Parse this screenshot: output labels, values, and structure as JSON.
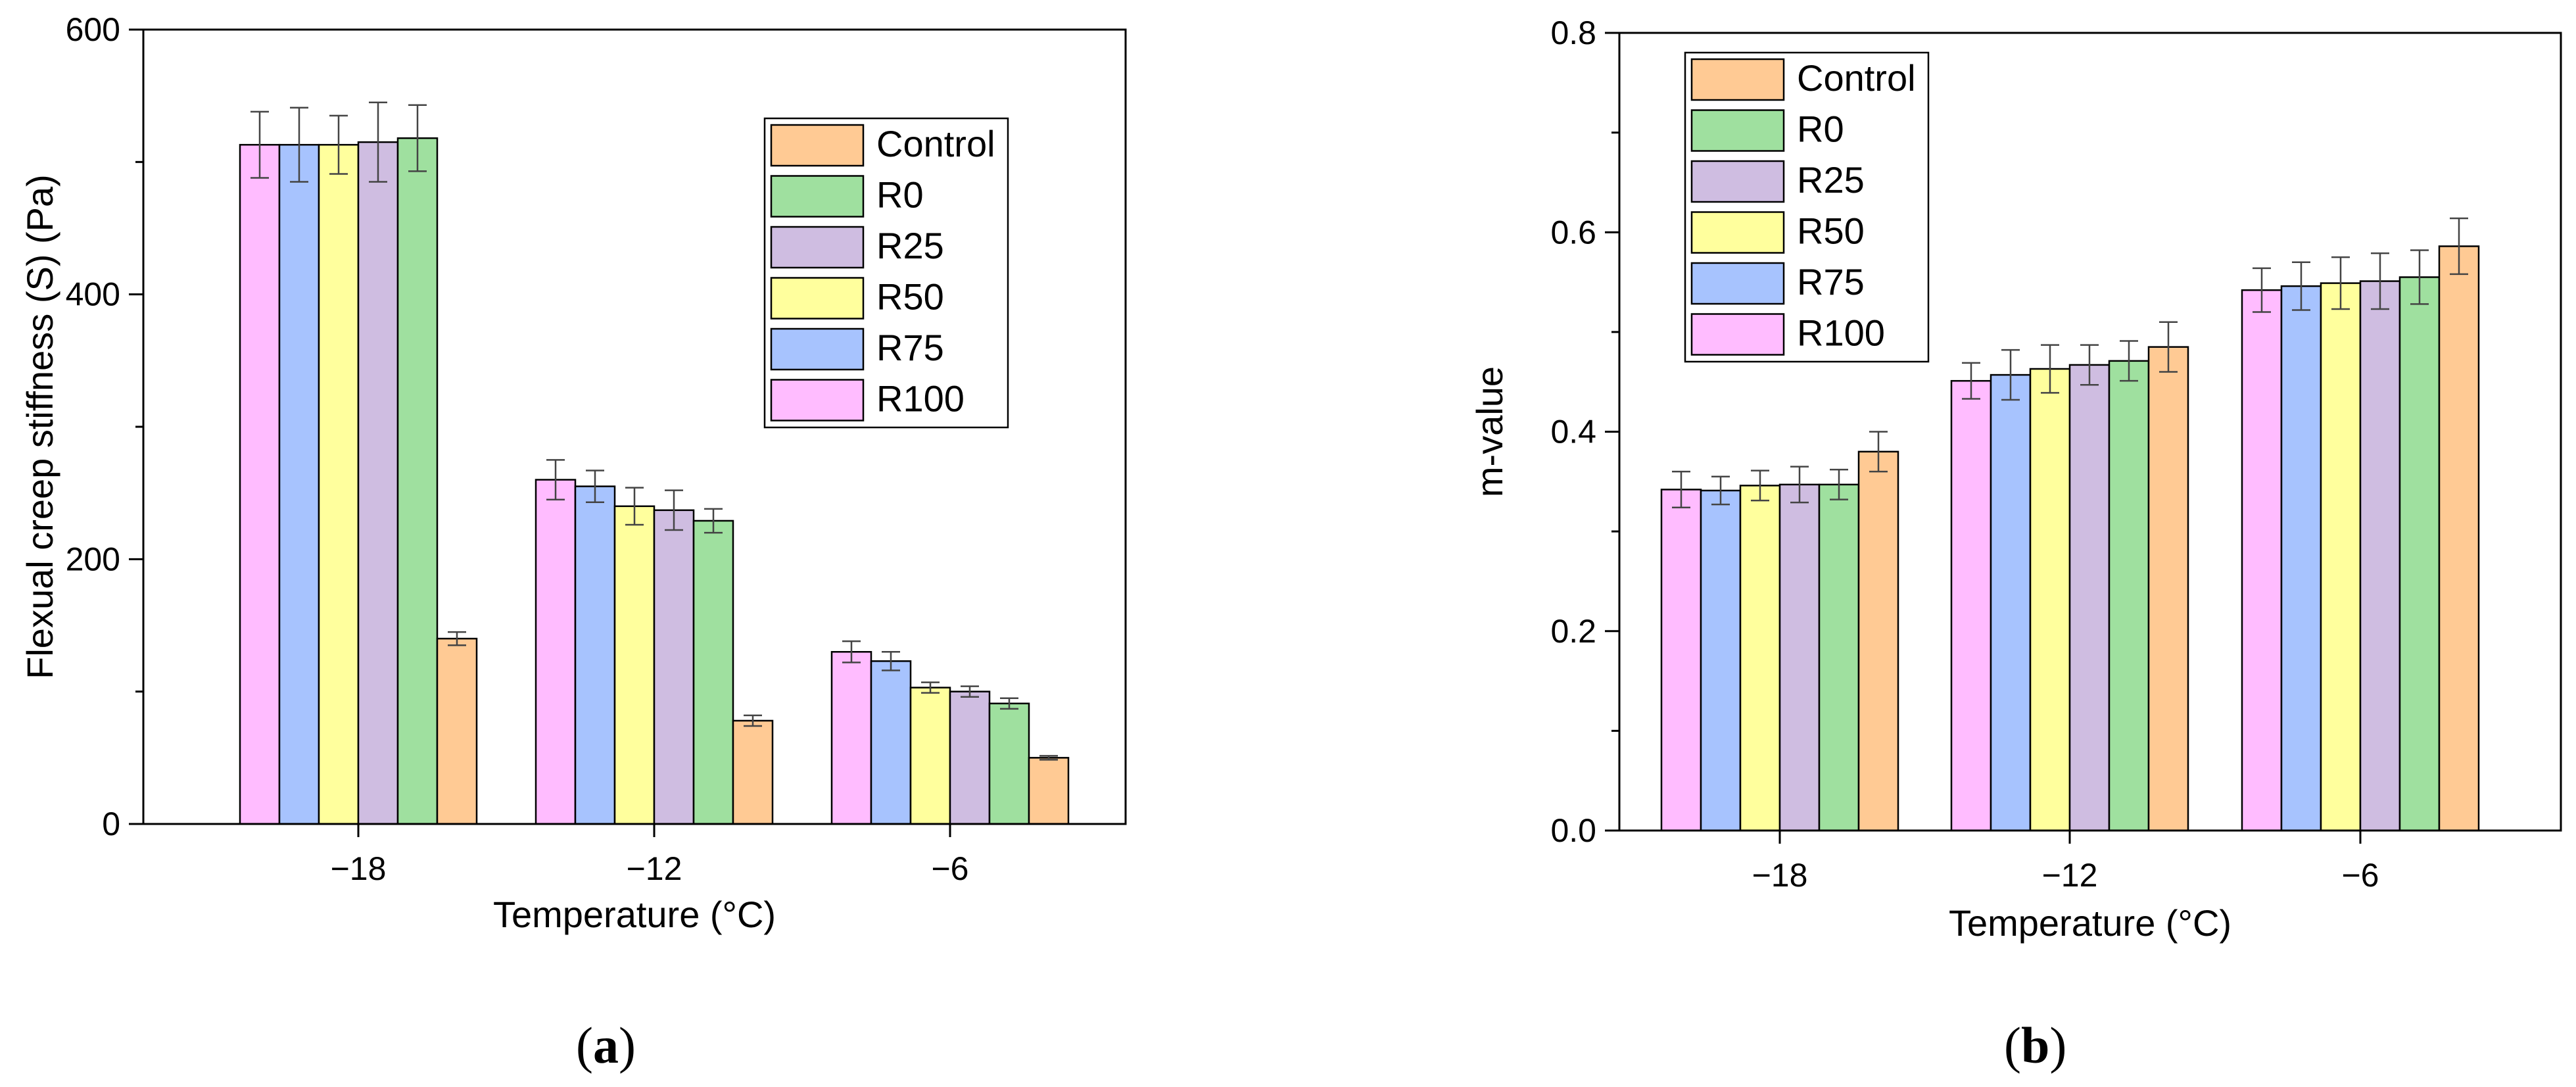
{
  "figure": {
    "label_a": "a",
    "label_b": "b",
    "paren_open": "(",
    "paren_close": ")"
  },
  "chart_data": [
    {
      "id": "a",
      "type": "bar",
      "title": "",
      "xlabel": "Temperature (°C)",
      "ylabel": "Flexual creep stiffness (S) (Pa)",
      "ylim": [
        0,
        600
      ],
      "yticks": [
        0,
        200,
        400,
        600
      ],
      "yminor": [
        100,
        300,
        500
      ],
      "grid": false,
      "legend_position": "top-right",
      "legend_order": [
        "Control",
        "R0",
        "R25",
        "R50",
        "R75",
        "R100"
      ],
      "categories": [
        "−18",
        "−12",
        "−6"
      ],
      "series": [
        {
          "name": "R100",
          "color": "#ffbcff",
          "values": [
            513,
            260,
            130
          ],
          "errors": [
            25,
            15,
            8
          ]
        },
        {
          "name": "R75",
          "color": "#a7c3fe",
          "values": [
            513,
            255,
            123
          ],
          "errors": [
            28,
            12,
            7
          ]
        },
        {
          "name": "R50",
          "color": "#ffff9d",
          "values": [
            513,
            240,
            103
          ],
          "errors": [
            22,
            14,
            4
          ]
        },
        {
          "name": "R25",
          "color": "#cfbde1",
          "values": [
            515,
            237,
            100
          ],
          "errors": [
            30,
            15,
            4
          ]
        },
        {
          "name": "R0",
          "color": "#9fe09f",
          "values": [
            518,
            229,
            91
          ],
          "errors": [
            25,
            9,
            4
          ]
        },
        {
          "name": "Control",
          "color": "#ffca94",
          "values": [
            140,
            78,
            50
          ],
          "errors": [
            5,
            4,
            1.5
          ]
        }
      ]
    },
    {
      "id": "b",
      "type": "bar",
      "title": "",
      "xlabel": "Temperature (°C)",
      "ylabel": "m-value",
      "ylim": [
        0,
        0.8
      ],
      "yticks": [
        0.0,
        0.2,
        0.4,
        0.6,
        0.8
      ],
      "ytick_labels": [
        "0.0",
        "0.2",
        "0.4",
        "0.6",
        "0.8"
      ],
      "yminor": [
        0.1,
        0.3,
        0.5,
        0.7
      ],
      "grid": false,
      "legend_position": "top-left",
      "legend_order": [
        "Control",
        "R0",
        "R25",
        "R50",
        "R75",
        "R100"
      ],
      "categories": [
        "−18",
        "−12",
        "−6"
      ],
      "series": [
        {
          "name": "R100",
          "color": "#ffbcff",
          "values": [
            0.342,
            0.451,
            0.542
          ],
          "errors": [
            0.018,
            0.018,
            0.022
          ]
        },
        {
          "name": "R75",
          "color": "#a7c3fe",
          "values": [
            0.341,
            0.457,
            0.546
          ],
          "errors": [
            0.014,
            0.025,
            0.024
          ]
        },
        {
          "name": "R50",
          "color": "#ffff9d",
          "values": [
            0.346,
            0.463,
            0.549
          ],
          "errors": [
            0.015,
            0.024,
            0.026
          ]
        },
        {
          "name": "R25",
          "color": "#cfbde1",
          "values": [
            0.347,
            0.467,
            0.551
          ],
          "errors": [
            0.018,
            0.02,
            0.028
          ]
        },
        {
          "name": "R0",
          "color": "#9fe09f",
          "values": [
            0.347,
            0.471,
            0.555
          ],
          "errors": [
            0.015,
            0.02,
            0.027
          ]
        },
        {
          "name": "Control",
          "color": "#ffca94",
          "values": [
            0.38,
            0.485,
            0.586
          ],
          "errors": [
            0.02,
            0.025,
            0.028
          ]
        }
      ]
    }
  ]
}
